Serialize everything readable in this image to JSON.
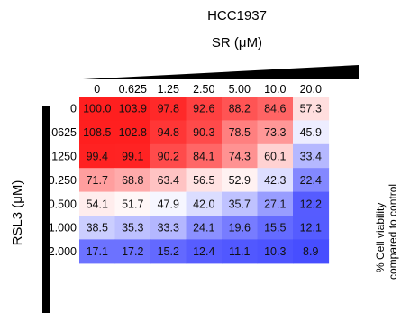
{
  "chart_data": {
    "type": "heatmap",
    "title": "HCC1937",
    "x_axis_label": "SR (μM)",
    "y_axis_label": "RSL3 (μM)",
    "colorbar_label": [
      "% Cell viability",
      "compared to control"
    ],
    "x_ticks": [
      "0",
      "0.625",
      "1.25",
      "2.50",
      "5.00",
      "10.0",
      "20.0"
    ],
    "y_ticks": [
      "0",
      "0.0625",
      "0.1250",
      "0.250",
      "0.500",
      "1.000",
      "2.000"
    ],
    "values": [
      [
        100.0,
        103.9,
        97.8,
        92.6,
        88.2,
        84.6,
        57.3
      ],
      [
        108.5,
        102.8,
        94.8,
        90.3,
        78.5,
        73.3,
        45.9
      ],
      [
        99.4,
        99.1,
        90.2,
        84.1,
        74.3,
        60.1,
        33.4
      ],
      [
        71.7,
        68.8,
        63.4,
        56.5,
        52.9,
        42.3,
        22.4
      ],
      [
        54.1,
        51.7,
        47.9,
        42.0,
        35.7,
        27.1,
        12.2
      ],
      [
        38.5,
        35.3,
        33.3,
        24.1,
        19.6,
        15.5,
        12.1
      ],
      [
        17.1,
        17.2,
        15.2,
        12.4,
        11.1,
        10.3,
        8.9
      ]
    ],
    "colormap": {
      "low": "#1f28ff",
      "mid": "#ffffff",
      "high": "#ff1f1f"
    }
  }
}
